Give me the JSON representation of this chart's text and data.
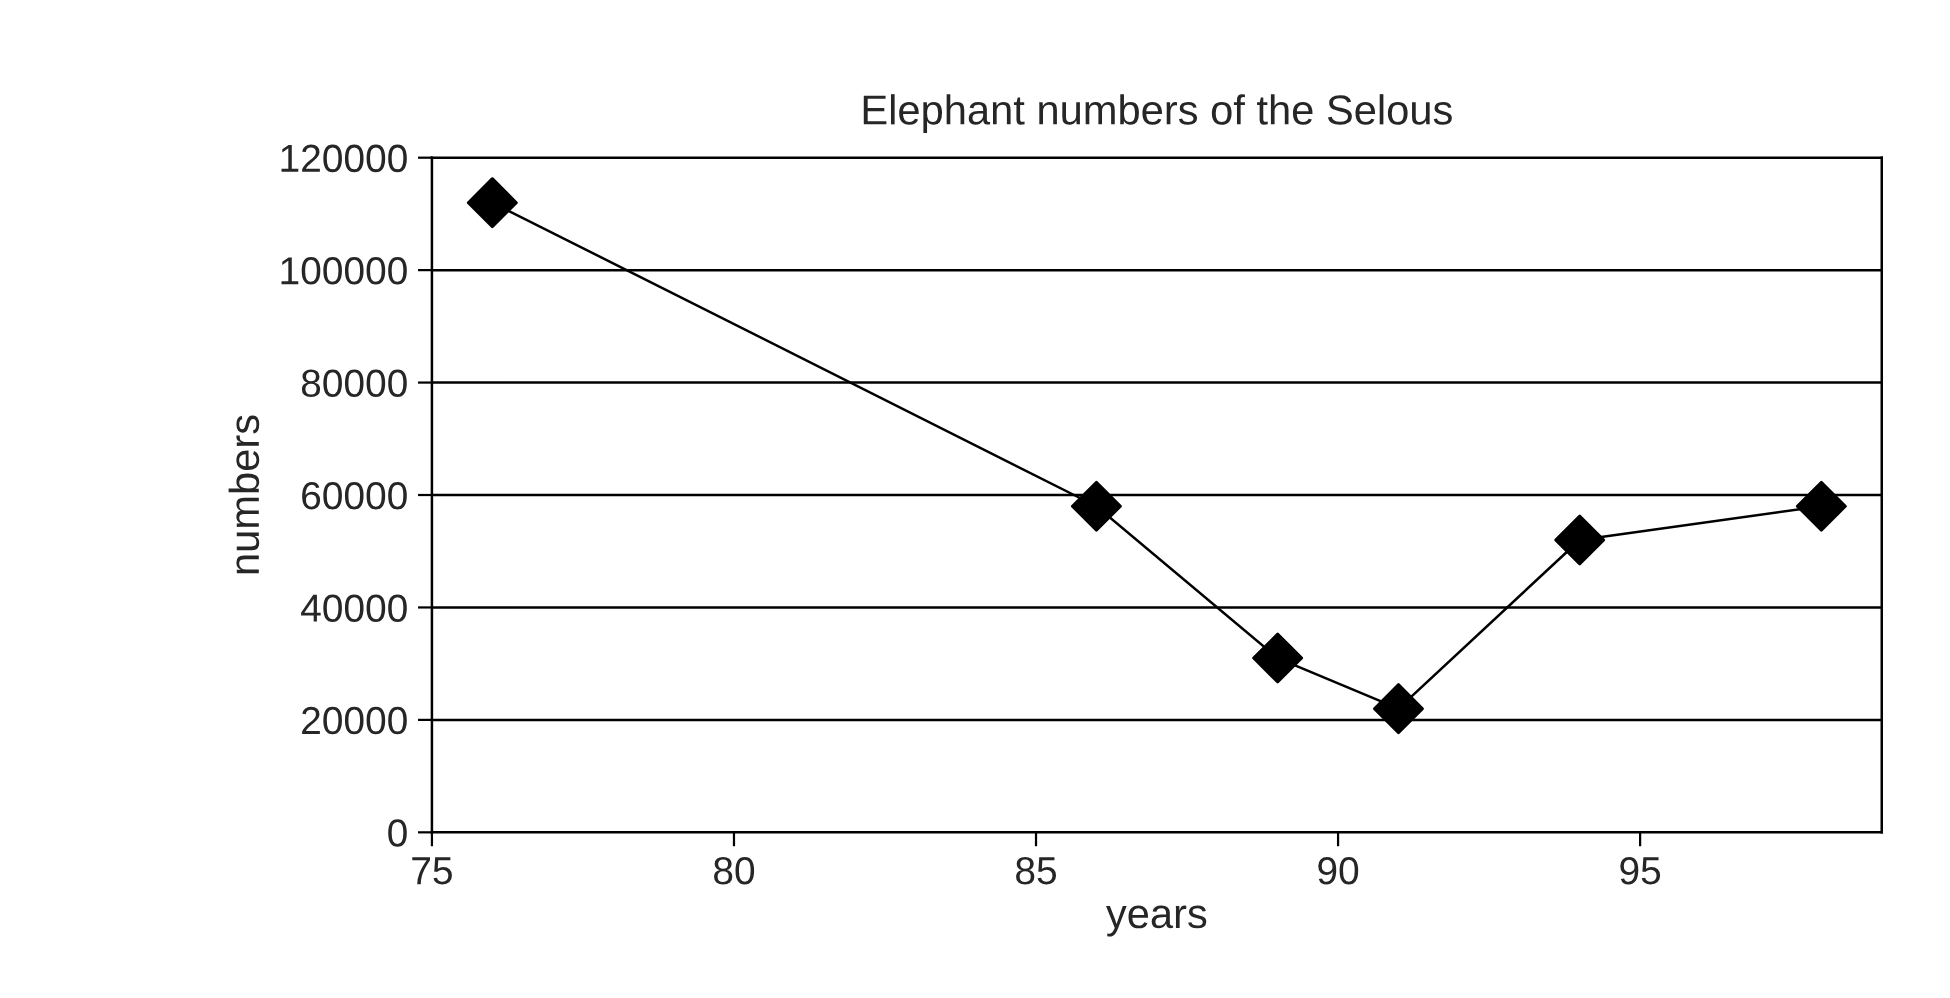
{
  "chart_data": {
    "type": "line",
    "title": "Elephant numbers of the Selous",
    "xlabel": "years",
    "ylabel": "numbers",
    "x": [
      76,
      86,
      89,
      91,
      94,
      98
    ],
    "series": [
      {
        "color": "#000000",
        "values": [
          112000,
          58000,
          31000,
          22000,
          52000,
          58000
        ]
      }
    ],
    "xlim": [
      75,
      99
    ],
    "xticks": [
      75,
      80,
      85,
      90,
      95
    ],
    "ylim": [
      0,
      120000
    ],
    "yticks": [
      0,
      20000,
      40000,
      60000,
      80000,
      100000,
      120000
    ],
    "grid": "y",
    "marker": "diamond",
    "line_style": "solid",
    "legend": false
  }
}
